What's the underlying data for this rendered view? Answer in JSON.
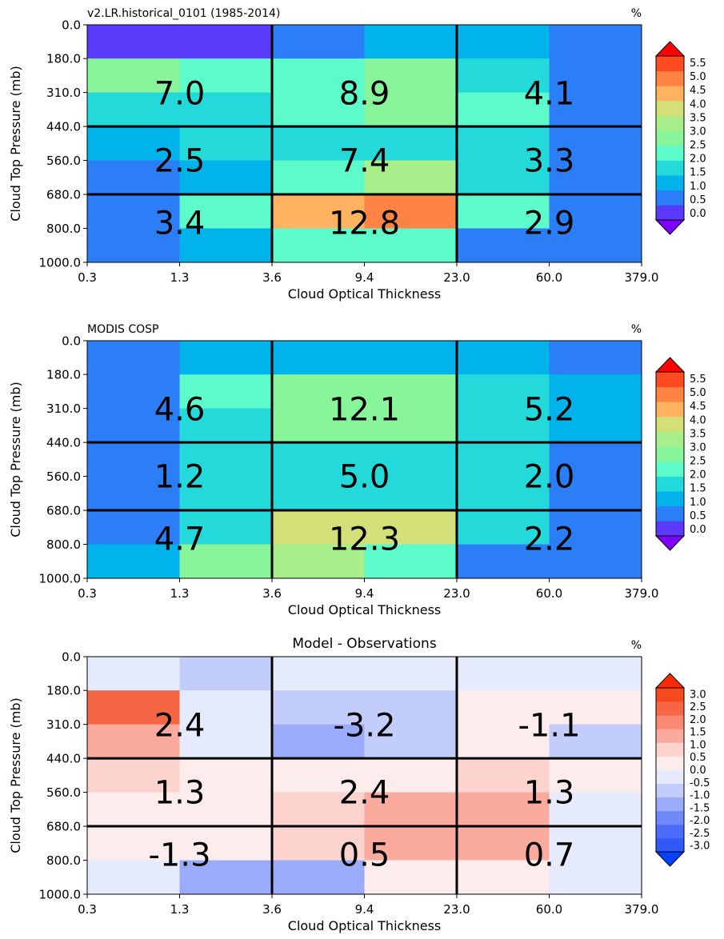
{
  "chart_data": [
    {
      "type": "heatmap",
      "title_left": "v2.LR.historical_0101 (1985-2014)",
      "title_center": "",
      "title_right": "%",
      "xlabel": "Cloud Optical Thickness",
      "ylabel": "Cloud Top Pressure (mb)",
      "x_ticks": [
        "0.3",
        "1.3",
        "3.6",
        "9.4",
        "23.0",
        "60.0",
        "379.0"
      ],
      "y_ticks": [
        "0.0",
        "180.0",
        "310.0",
        "440.0",
        "560.0",
        "680.0",
        "800.0",
        "1000.0"
      ],
      "rows_pressure_top_to_bottom": [
        "0-180",
        "180-310",
        "310-440",
        "440-560",
        "560-680",
        "680-800",
        "800-1000"
      ],
      "cols_tau_left_to_right": [
        "0.3-1.3",
        "1.3-3.6",
        "3.6-9.4",
        "9.4-23",
        "23-60",
        "60-379"
      ],
      "values": [
        [
          0.1,
          0.1,
          0.3,
          1.2,
          1.2,
          0.3
        ],
        [
          2.8,
          2.2,
          2.2,
          2.7,
          1.6,
          0.3
        ],
        [
          1.6,
          1.6,
          2.2,
          2.7,
          2.0,
          0.3
        ],
        [
          1.1,
          1.6,
          1.6,
          1.9,
          1.6,
          0.3
        ],
        [
          0.3,
          1.1,
          2.4,
          3.2,
          1.6,
          0.3
        ],
        [
          0.3,
          2.0,
          4.4,
          5.1,
          2.4,
          0.3
        ],
        [
          0.3,
          1.2,
          2.0,
          2.0,
          0.3,
          0.3
        ]
      ],
      "group_sums": [
        [
          "7.0",
          "8.9",
          "4.1"
        ],
        [
          "2.5",
          "7.4",
          "3.3"
        ],
        [
          "3.4",
          "12.8",
          "2.9"
        ]
      ],
      "colorbar": {
        "ticks": [
          "0.0",
          "0.5",
          "1.0",
          "1.5",
          "2.0",
          "2.5",
          "3.0",
          "3.5",
          "4.0",
          "4.5",
          "5.0",
          "5.5"
        ],
        "min": -0.25,
        "max": 5.75,
        "extend": "both",
        "colors": [
          "#8000ff",
          "#5b39fb",
          "#2b7ef6",
          "#00b4eb",
          "#23d9da",
          "#5dfaca",
          "#89f59a",
          "#a8ee8b",
          "#d3df77",
          "#ffb360",
          "#ff8444",
          "#ff4a22",
          "#ff0000"
        ]
      }
    },
    {
      "type": "heatmap",
      "title_left": "MODIS COSP",
      "title_center": "",
      "title_right": "%",
      "xlabel": "Cloud Optical Thickness",
      "ylabel": "Cloud Top Pressure (mb)",
      "x_ticks": [
        "0.3",
        "1.3",
        "3.6",
        "9.4",
        "23.0",
        "60.0",
        "379.0"
      ],
      "y_ticks": [
        "0.0",
        "180.0",
        "310.0",
        "440.0",
        "560.0",
        "680.0",
        "800.0",
        "1000.0"
      ],
      "rows_pressure_top_to_bottom": [
        "0-180",
        "180-310",
        "310-440",
        "440-560",
        "560-680",
        "680-800",
        "800-1000"
      ],
      "cols_tau_left_to_right": [
        "0.3-1.3",
        "1.3-3.6",
        "3.6-9.4",
        "9.4-23",
        "23-60",
        "60-379"
      ],
      "values": [
        [
          0.3,
          1.0,
          1.0,
          1.0,
          1.0,
          0.3
        ],
        [
          0.3,
          2.2,
          3.0,
          2.6,
          1.6,
          1.2
        ],
        [
          0.3,
          1.6,
          3.0,
          3.0,
          1.6,
          1.2
        ],
        [
          0.3,
          1.6,
          1.6,
          1.6,
          1.6,
          0.5
        ],
        [
          0.3,
          1.6,
          1.6,
          1.6,
          1.6,
          0.3
        ],
        [
          0.3,
          1.6,
          3.6,
          3.6,
          1.6,
          0.3
        ],
        [
          1.1,
          2.6,
          3.1,
          2.2,
          0.3,
          0.3
        ]
      ],
      "group_sums": [
        [
          "4.6",
          "12.1",
          "5.2"
        ],
        [
          "1.2",
          "5.0",
          "2.0"
        ],
        [
          "4.7",
          "12.3",
          "2.2"
        ]
      ],
      "colorbar": {
        "ticks": [
          "0.0",
          "0.5",
          "1.0",
          "1.5",
          "2.0",
          "2.5",
          "3.0",
          "3.5",
          "4.0",
          "4.5",
          "5.0",
          "5.5"
        ],
        "min": -0.25,
        "max": 5.75,
        "extend": "both",
        "colors": [
          "#8000ff",
          "#5b39fb",
          "#2b7ef6",
          "#00b4eb",
          "#23d9da",
          "#5dfaca",
          "#89f59a",
          "#a8ee8b",
          "#d3df77",
          "#ffb360",
          "#ff8444",
          "#ff4a22",
          "#ff0000"
        ]
      }
    },
    {
      "type": "heatmap",
      "title_left": "",
      "title_center": "Model - Observations",
      "title_right": "%",
      "xlabel": "Cloud Optical Thickness",
      "ylabel": "Cloud Top Pressure (mb)",
      "x_ticks": [
        "0.3",
        "1.3",
        "3.6",
        "9.4",
        "23.0",
        "60.0",
        "379.0"
      ],
      "y_ticks": [
        "0.0",
        "180.0",
        "310.0",
        "440.0",
        "560.0",
        "680.0",
        "800.0",
        "1000.0"
      ],
      "rows_pressure_top_to_bottom": [
        "0-180",
        "180-310",
        "310-440",
        "440-560",
        "560-680",
        "680-800",
        "800-1000"
      ],
      "cols_tau_left_to_right": [
        "0.3-1.3",
        "1.3-3.6",
        "3.6-9.4",
        "9.4-23",
        "23-60",
        "60-379"
      ],
      "values": [
        [
          -0.2,
          -0.7,
          -0.2,
          -0.2,
          -0.2,
          -0.2
        ],
        [
          2.4,
          -0.2,
          -0.7,
          -0.7,
          0.2,
          0.2
        ],
        [
          1.4,
          -0.2,
          -1.1,
          -0.7,
          0.2,
          -0.7
        ],
        [
          0.7,
          0.2,
          0.2,
          0.2,
          0.7,
          0.2
        ],
        [
          0.2,
          0.2,
          0.7,
          1.1,
          1.1,
          -0.2
        ],
        [
          0.2,
          0.2,
          0.7,
          1.1,
          1.1,
          -0.2
        ],
        [
          -0.2,
          -1.6,
          -1.1,
          0.2,
          0.2,
          -0.2
        ]
      ],
      "group_sums": [
        [
          "2.4",
          "-3.2",
          "-1.1"
        ],
        [
          "1.3",
          "2.4",
          "1.3"
        ],
        [
          "-1.3",
          "0.5",
          "0.7"
        ]
      ],
      "colorbar": {
        "ticks": [
          "3.0",
          "2.5",
          "2.0",
          "1.5",
          "1.0",
          "0.5",
          "0.0",
          "-0.5",
          "-1.0",
          "-1.5",
          "-2.0",
          "-2.5",
          "-3.0"
        ],
        "min": -3.25,
        "max": 3.25,
        "extend": "both",
        "colors": [
          "#0040ff",
          "#2f5af8",
          "#4a6cf9",
          "#6f88fa",
          "#9aabfa",
          "#c3cdfb",
          "#e6eafd",
          "#fdecec",
          "#fcd3cd",
          "#fbaa9e",
          "#f98874",
          "#f56645",
          "#f54a20",
          "#ff2a00"
        ]
      }
    }
  ]
}
